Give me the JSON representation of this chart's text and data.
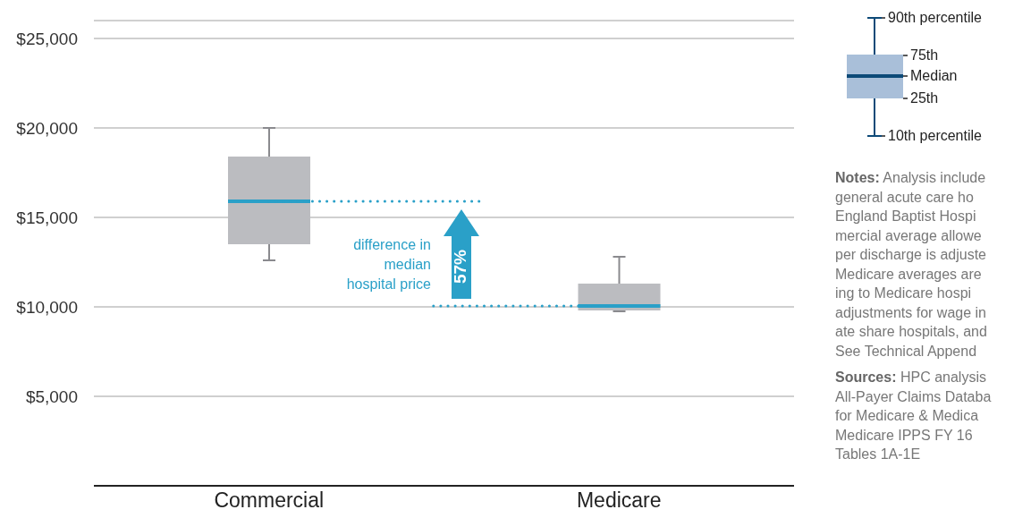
{
  "chart_data": {
    "type": "box",
    "categories": [
      "Commercial",
      "Medicare"
    ],
    "color": "#bbbcc0",
    "boxes": [
      {
        "low": 12600,
        "q1": 13500,
        "median": 15900,
        "q3": 18400,
        "high": 20000
      },
      {
        "low": 9750,
        "q1": 9800,
        "median": 10050,
        "q3": 11300,
        "high": 12800
      }
    ],
    "ylim": [
      0,
      26000
    ],
    "yticks": [
      {
        "value": 5000,
        "label": "$5,000"
      },
      {
        "value": 10000,
        "label": "$10,000"
      },
      {
        "value": 15000,
        "label": "$15,000"
      },
      {
        "value": 20000,
        "label": "$20,000"
      },
      {
        "value": 25000,
        "label": "$25,000"
      }
    ],
    "grid": "y",
    "ref_lines": [
      {
        "axis": "y",
        "value": 15900,
        "color": "#2aa0c8",
        "line_style": "dotted"
      },
      {
        "axis": "y",
        "value": 10050,
        "color": "#2aa0c8",
        "line_style": "dotted"
      }
    ],
    "annotations": [
      "difference in median hospital price",
      "57%",
      "90th percentile",
      "75th",
      "Median",
      "25th",
      "10th percentile",
      "Notes: Analysis include",
      "general acute care ho",
      "England Baptist Hospi",
      "mercial average allowe",
      "per discharge is adjuste",
      "Medicare averages are",
      "ing to Medicare hospi",
      "adjustments for wage in",
      "ate share hospitals, and",
      "See Technical Append",
      "Sources: HPC analysis",
      "All-Payer Claims Databa",
      "for Medicare & Medica",
      "Medicare IPPS FY 16",
      "Tables 1A-1E"
    ]
  }
}
